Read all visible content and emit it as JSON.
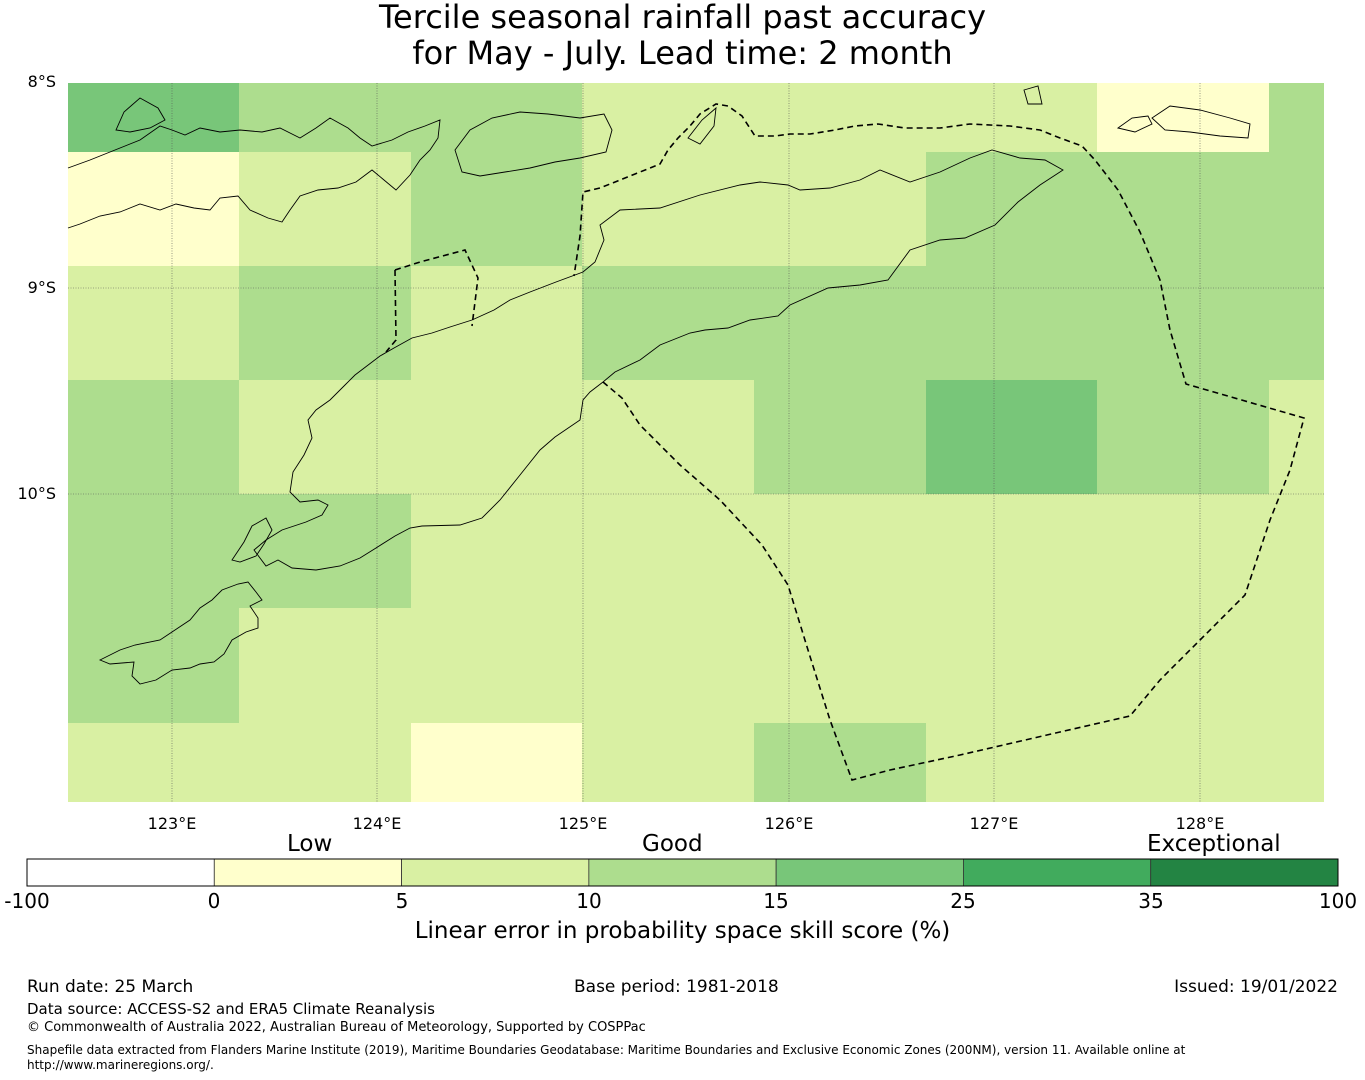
{
  "header": {
    "title_line1": "Tercile seasonal rainfall past accuracy",
    "title_line2": "for May - July. Lead time: 2 month"
  },
  "map": {
    "lat_labels": [
      "8°S",
      "9°S",
      "10°S"
    ],
    "lon_labels": [
      "123°E",
      "124°E",
      "125°E",
      "126°E",
      "127°E",
      "128°E"
    ],
    "colors": {
      "low": "#ffffcc",
      "good_low": "#d9f0a3",
      "good_mid": "#addd8e",
      "good_high": "#78c679",
      "very_good": "#41ab5d",
      "exceptional": "#238443",
      "below_zero": "#ffffff"
    },
    "skill_grid_categories": [
      [
        "good_high",
        "good_mid",
        "good_mid",
        "good_low",
        "good_low",
        "good_low",
        "low",
        "good_mid"
      ],
      [
        "low",
        "good_low",
        "good_mid",
        "good_low",
        "good_low",
        "good_mid",
        "good_mid",
        "good_mid"
      ],
      [
        "good_low",
        "good_mid",
        "good_low",
        "good_mid",
        "good_mid",
        "good_mid",
        "good_mid",
        "good_mid"
      ],
      [
        "good_mid",
        "good_low",
        "good_low",
        "good_low",
        "good_mid",
        "good_high",
        "good_mid",
        "good_low"
      ],
      [
        "good_mid",
        "good_mid",
        "good_low",
        "good_low",
        "good_low",
        "good_low",
        "good_low",
        "good_low"
      ],
      [
        "good_mid",
        "good_low",
        "good_low",
        "good_low",
        "good_low",
        "good_low",
        "good_low",
        "good_low"
      ],
      [
        "good_low",
        "good_low",
        "low",
        "good_low",
        "good_mid",
        "good_low",
        "good_low",
        "good_low"
      ]
    ]
  },
  "colorbar": {
    "words": [
      "Low",
      "Good",
      "Exceptional"
    ],
    "ticks": [
      "-100",
      "0",
      "5",
      "10",
      "15",
      "25",
      "35",
      "100"
    ],
    "segment_colors": [
      "#ffffff",
      "#ffffcc",
      "#d9f0a3",
      "#addd8e",
      "#78c679",
      "#41ab5d",
      "#238443"
    ],
    "axis_label": "Linear error in probability space skill score (%)"
  },
  "footer": {
    "run_date": "Run date: 25 March",
    "base_period": "Base period: 1981-2018",
    "issued": "Issued: 19/01/2022",
    "data_source": "Data source: ACCESS-S2 and ERA5 Climate Reanalysis",
    "copyright": "© Commonwealth of Australia 2022, Australian Bureau of Meteorology, Supported by COSPPac",
    "shapefile_line1": "Shapefile data extracted from Flanders Marine Institute (2019), Maritime Boundaries Geodatabase: Maritime Boundaries and Exclusive Economic Zones (200NM), version 11. Available online at",
    "shapefile_line2": "http://www.marineregions.org/."
  }
}
